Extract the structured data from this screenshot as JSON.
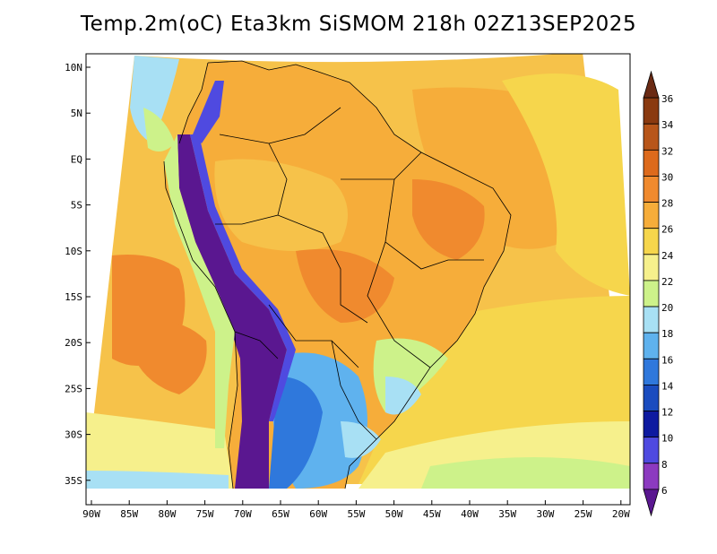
{
  "title": "Temp.2m(oC) Eta3km SiSMOM 218h 02Z13SEP2025",
  "map": {
    "lat_labels": [
      "10N",
      "5N",
      "EQ",
      "5S",
      "10S",
      "15S",
      "20S",
      "25S",
      "30S",
      "35S"
    ],
    "lon_labels": [
      "90W",
      "85W",
      "80W",
      "75W",
      "70W",
      "65W",
      "60W",
      "55W",
      "50W",
      "45W",
      "40W",
      "35W",
      "30W",
      "25W",
      "20W"
    ]
  },
  "colorbar": {
    "labels": [
      "36",
      "34",
      "32",
      "30",
      "28",
      "26",
      "24",
      "22",
      "20",
      "18",
      "16",
      "14",
      "12",
      "10",
      "8",
      "6"
    ],
    "colors": [
      "#6a2a14",
      "#8a3a10",
      "#b8561a",
      "#dd6a1c",
      "#f08a2e",
      "#f6ad3a",
      "#f6d64c",
      "#f6f08c",
      "#cdf28a",
      "#a8e0f4",
      "#5fb2ee",
      "#2f78dc",
      "#1a4cbf",
      "#0e1aa0",
      "#4f4ae0",
      "#8c3ac0",
      "#5a1790"
    ]
  }
}
